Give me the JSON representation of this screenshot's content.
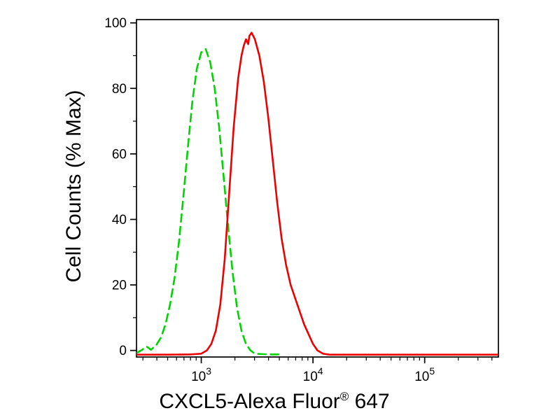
{
  "chart_data": {
    "type": "line",
    "title": "",
    "xlabel_pre": "CXCL5-Alexa Fluor",
    "xlabel_sup": "®",
    "xlabel_post": " 647",
    "ylabel": "Cell Counts (% Max)",
    "x_scale": "log10",
    "x_range_log": [
      2.42,
      5.66
    ],
    "ylim": [
      -2,
      101
    ],
    "grid": false,
    "legend": false,
    "background": "#ffffff",
    "frame_color": "#000000",
    "x_major_ticks": [
      {
        "log": 3,
        "base": "10",
        "exp": "3",
        "value": 1000
      },
      {
        "log": 4,
        "base": "10",
        "exp": "4",
        "value": 10000
      },
      {
        "log": 5,
        "base": "10",
        "exp": "5",
        "value": 100000
      }
    ],
    "x_minor_multiples": [
      2,
      3,
      4,
      5,
      6,
      7,
      8,
      9
    ],
    "y_major_ticks": [
      0,
      20,
      40,
      60,
      80,
      100
    ],
    "y_minor_step": 10,
    "series": [
      {
        "id": "curve-isotype-control-green-dashed",
        "name": "control (green dashed)",
        "color": "#00d400",
        "line_style": "dashed",
        "dash_pattern": "11 7",
        "stroke_width": 2.6,
        "peak": {
          "x": 1100,
          "y": 92
        },
        "points": [
          [
            2.42,
            -0.8
          ],
          [
            2.47,
            0.2
          ],
          [
            2.51,
            1.2
          ],
          [
            2.55,
            0.2
          ],
          [
            2.6,
            1.8
          ],
          [
            2.64,
            4
          ],
          [
            2.68,
            8
          ],
          [
            2.72,
            14
          ],
          [
            2.76,
            22
          ],
          [
            2.8,
            33
          ],
          [
            2.84,
            47
          ],
          [
            2.88,
            62
          ],
          [
            2.92,
            76
          ],
          [
            2.96,
            86
          ],
          [
            3.0,
            91
          ],
          [
            3.04,
            92
          ],
          [
            3.08,
            88
          ],
          [
            3.12,
            80
          ],
          [
            3.16,
            68
          ],
          [
            3.2,
            53
          ],
          [
            3.24,
            38
          ],
          [
            3.28,
            24
          ],
          [
            3.32,
            13
          ],
          [
            3.36,
            6
          ],
          [
            3.4,
            2
          ],
          [
            3.44,
            0
          ],
          [
            3.48,
            -1
          ],
          [
            3.6,
            -1.2
          ],
          [
            3.72,
            -1.2
          ]
        ]
      },
      {
        "id": "curve-cxcl5-stained-red-solid",
        "name": "CXCL5 stained (red solid)",
        "color": "#ee0000",
        "line_style": "solid",
        "dash_pattern": "",
        "stroke_width": 2.6,
        "peak": {
          "x": 2800,
          "y": 97
        },
        "points": [
          [
            2.42,
            -1.3
          ],
          [
            2.7,
            -1.3
          ],
          [
            2.9,
            -1.2
          ],
          [
            3.0,
            -1
          ],
          [
            3.05,
            0
          ],
          [
            3.09,
            2
          ],
          [
            3.13,
            6
          ],
          [
            3.17,
            14
          ],
          [
            3.21,
            28
          ],
          [
            3.25,
            48
          ],
          [
            3.29,
            68
          ],
          [
            3.33,
            83
          ],
          [
            3.36,
            90
          ],
          [
            3.38,
            93
          ],
          [
            3.4,
            95
          ],
          [
            3.42,
            93.5
          ],
          [
            3.43,
            96
          ],
          [
            3.45,
            97
          ],
          [
            3.48,
            95
          ],
          [
            3.52,
            90
          ],
          [
            3.56,
            82
          ],
          [
            3.6,
            71
          ],
          [
            3.64,
            58
          ],
          [
            3.68,
            45
          ],
          [
            3.72,
            34
          ],
          [
            3.76,
            26
          ],
          [
            3.8,
            20
          ],
          [
            3.84,
            16
          ],
          [
            3.88,
            12
          ],
          [
            3.92,
            8
          ],
          [
            3.96,
            5
          ],
          [
            4.0,
            2
          ],
          [
            4.04,
            0
          ],
          [
            4.09,
            -1
          ],
          [
            4.15,
            -1.3
          ],
          [
            5.66,
            -1.3
          ]
        ]
      }
    ]
  }
}
